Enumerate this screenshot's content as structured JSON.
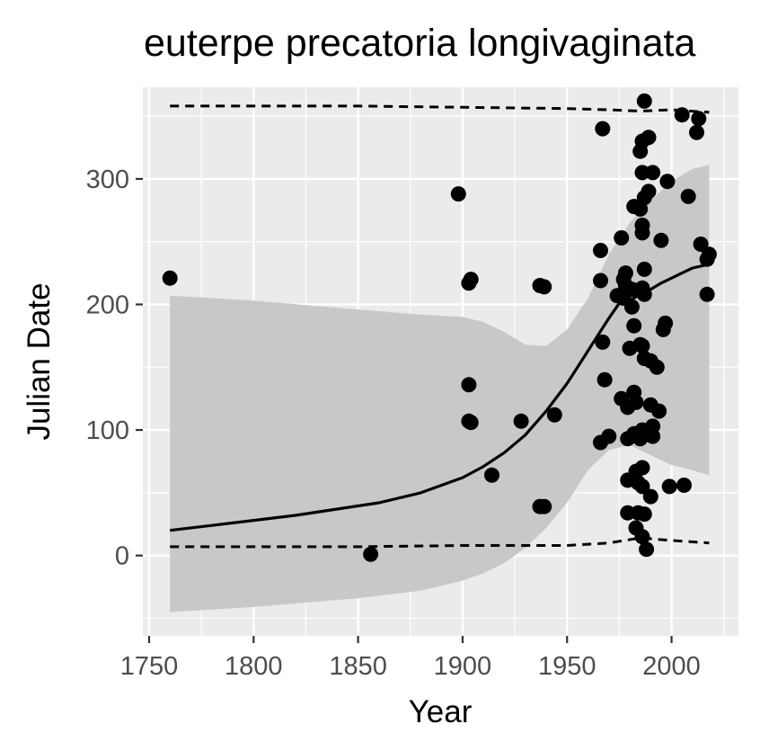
{
  "chart_data": {
    "type": "scatter",
    "title": "euterpe precatoria longivaginata",
    "xlabel": "Year",
    "ylabel": "Julian Date",
    "xlim": [
      1747,
      2032
    ],
    "ylim": [
      -64,
      373
    ],
    "x_ticks": [
      1750,
      1800,
      1850,
      1900,
      1950,
      2000
    ],
    "y_ticks": [
      0,
      100,
      200,
      300
    ],
    "grid": true,
    "legend": "none",
    "colors": {
      "panel": "#ebebeb",
      "grid": "#ffffff",
      "ribbon": "#c8c8c8",
      "points": "#000000",
      "line": "#000000",
      "tick_text": "#4d4d4d"
    },
    "points": [
      [
        1760,
        221
      ],
      [
        1856,
        1
      ],
      [
        1898,
        288
      ],
      [
        1903,
        217
      ],
      [
        1904,
        220
      ],
      [
        1903,
        136
      ],
      [
        1903,
        107
      ],
      [
        1904,
        106
      ],
      [
        1914,
        64
      ],
      [
        1928,
        107
      ],
      [
        1937,
        215
      ],
      [
        1939,
        214
      ],
      [
        1937,
        39
      ],
      [
        1939,
        39
      ],
      [
        1944,
        112
      ],
      [
        1966,
        243
      ],
      [
        1966,
        219
      ],
      [
        1967,
        170
      ],
      [
        1967,
        340
      ],
      [
        1968,
        140
      ],
      [
        1966,
        90
      ],
      [
        1970,
        95
      ],
      [
        1974,
        207
      ],
      [
        1976,
        253
      ],
      [
        1977,
        205
      ],
      [
        1978,
        225
      ],
      [
        1977,
        220
      ],
      [
        1978,
        215
      ],
      [
        1976,
        125
      ],
      [
        1979,
        118
      ],
      [
        1979,
        93
      ],
      [
        1979,
        60
      ],
      [
        1979,
        34
      ],
      [
        1980,
        165
      ],
      [
        1981,
        212
      ],
      [
        1981,
        198
      ],
      [
        1982,
        278
      ],
      [
        1982,
        183
      ],
      [
        1982,
        130
      ],
      [
        1983,
        122
      ],
      [
        1982,
        97
      ],
      [
        1983,
        67
      ],
      [
        1984,
        34
      ],
      [
        1983,
        22
      ],
      [
        1984,
        58
      ],
      [
        1985,
        322
      ],
      [
        1985,
        276
      ],
      [
        1985,
        168
      ],
      [
        1985,
        93
      ],
      [
        1986,
        330
      ],
      [
        1986,
        305
      ],
      [
        1986,
        263
      ],
      [
        1986,
        257
      ],
      [
        1986,
        213
      ],
      [
        1986,
        167
      ],
      [
        1986,
        100
      ],
      [
        1986,
        70
      ],
      [
        1986,
        55
      ],
      [
        1986,
        15
      ],
      [
        1987,
        362
      ],
      [
        1987,
        285
      ],
      [
        1987,
        228
      ],
      [
        1987,
        208
      ],
      [
        1987,
        157
      ],
      [
        1987,
        33
      ],
      [
        1988,
        5
      ],
      [
        1989,
        333
      ],
      [
        1989,
        290
      ],
      [
        1990,
        155
      ],
      [
        1990,
        120
      ],
      [
        1990,
        47
      ],
      [
        1991,
        305
      ],
      [
        1991,
        103
      ],
      [
        1991,
        95
      ],
      [
        1993,
        150
      ],
      [
        1994,
        115
      ],
      [
        1995,
        251
      ],
      [
        1996,
        180
      ],
      [
        1997,
        185
      ],
      [
        1998,
        298
      ],
      [
        1999,
        55
      ],
      [
        2005,
        351
      ],
      [
        2006,
        56
      ],
      [
        2008,
        286
      ],
      [
        2012,
        337
      ],
      [
        2013,
        348
      ],
      [
        2014,
        248
      ],
      [
        2017,
        236
      ],
      [
        2018,
        240
      ],
      [
        2017,
        208
      ]
    ],
    "fit_line": {
      "x": [
        1760,
        1780,
        1800,
        1820,
        1840,
        1860,
        1880,
        1900,
        1910,
        1920,
        1930,
        1940,
        1950,
        1955,
        1960,
        1965,
        1970,
        1975,
        1980,
        1985,
        1990,
        1995,
        2000,
        2005,
        2010,
        2018
      ],
      "y": [
        20,
        24,
        28,
        32,
        37,
        42,
        50,
        62,
        71,
        82,
        96,
        115,
        137,
        150,
        163,
        176,
        189,
        201,
        203,
        208,
        212,
        217,
        221,
        225,
        229,
        232
      ]
    },
    "ribbon": {
      "x": [
        1760,
        1800,
        1850,
        1880,
        1900,
        1910,
        1920,
        1930,
        1940,
        1950,
        1960,
        1970,
        1980,
        1990,
        2000,
        2010,
        2018
      ],
      "upper": [
        207,
        203,
        196,
        192,
        190,
        186,
        178,
        168,
        167,
        180,
        205,
        240,
        265,
        283,
        298,
        308,
        311
      ],
      "lower": [
        -45,
        -41,
        -34,
        -28,
        -20,
        -14,
        -6,
        6,
        22,
        42,
        68,
        84,
        88,
        80,
        72,
        68,
        64
      ]
    },
    "dashed_upper": {
      "x": [
        1760,
        1800,
        1850,
        1900,
        1950,
        1970,
        1985,
        2000,
        2018
      ],
      "y": [
        358,
        358,
        358,
        357,
        356,
        355,
        354,
        355,
        353
      ]
    },
    "dashed_lower": {
      "x": [
        1760,
        1800,
        1850,
        1900,
        1950,
        1970,
        1985,
        2000,
        2018
      ],
      "y": [
        7,
        7,
        7,
        8,
        8,
        10,
        14,
        12,
        10
      ]
    }
  }
}
